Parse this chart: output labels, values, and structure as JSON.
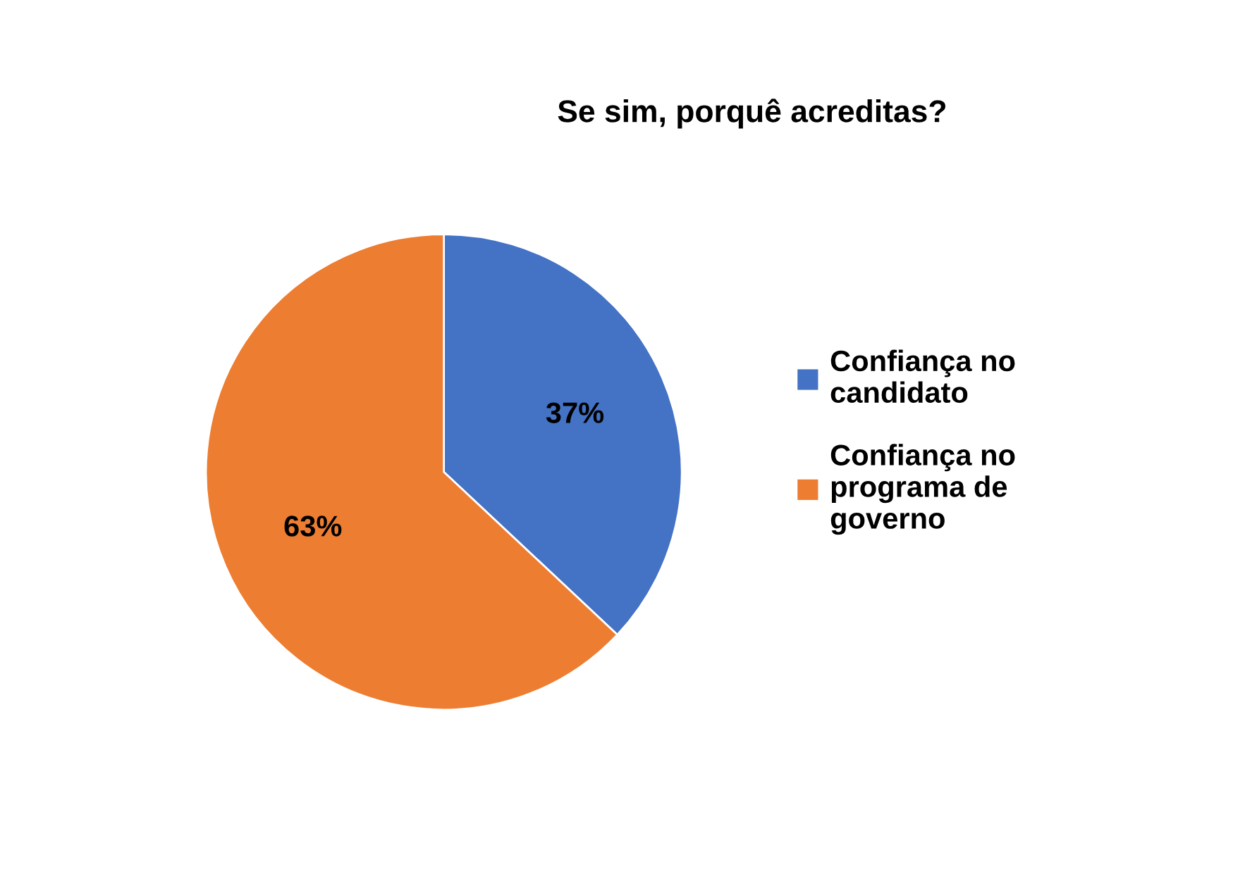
{
  "chart_data": {
    "type": "pie",
    "title": "Se sim, porquê acreditas?",
    "categories": [
      "Confiança no candidato",
      "Confiança no programa de governo"
    ],
    "values": [
      37,
      63
    ],
    "colors": [
      "#4472c4",
      "#ed7d31"
    ],
    "value_labels": [
      "37%",
      "63%"
    ],
    "legend": "right"
  }
}
